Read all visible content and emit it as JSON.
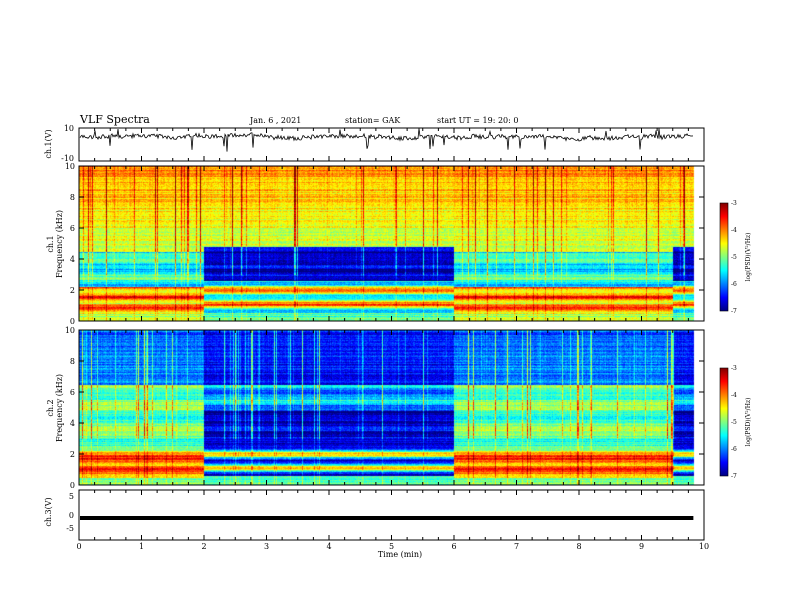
{
  "header": {
    "title": "VLF Spectra",
    "date": "Jan. 6 , 2021",
    "station": "station= GAK",
    "start": "start UT =  19: 20: 0"
  },
  "chart_data": [
    {
      "type": "line",
      "name": "ch1-waveform",
      "ylabel": "ch.1(V)",
      "ylim": [
        -10,
        10
      ],
      "yticks": [
        "10",
        "-10"
      ],
      "xlim": [
        0,
        10
      ],
      "x_extent": [
        0,
        9.83
      ],
      "baseline": 4.5
    },
    {
      "type": "heatmap",
      "name": "ch1-spectrogram",
      "ylabel": "ch.1",
      "ylabel2": "Frequency (kHz)",
      "ylim": [
        0,
        10
      ],
      "yticks": [
        "0",
        "2",
        "4",
        "6",
        "8",
        "10"
      ],
      "xlim": [
        0,
        10
      ],
      "x_extent": [
        0,
        9.83
      ],
      "segments": [
        {
          "x": [
            0,
            2.0
          ],
          "quiet": false
        },
        {
          "x": [
            2.0,
            6.0
          ],
          "quiet": true
        },
        {
          "x": [
            6.0,
            9.5
          ],
          "quiet": false
        },
        {
          "x": [
            9.5,
            9.83
          ],
          "quiet": true
        }
      ],
      "colorbar": {
        "label": "log(PSD)(V²/Hz)",
        "range": [
          -7,
          -3
        ],
        "ticks": [
          "-3",
          "-4",
          "-5",
          "-6",
          "-7"
        ]
      }
    },
    {
      "type": "heatmap",
      "name": "ch2-spectrogram",
      "ylabel": "ch.2",
      "ylabel2": "Frequency (kHz)",
      "ylim": [
        0,
        10
      ],
      "yticks": [
        "0",
        "2",
        "4",
        "6",
        "8",
        "10"
      ],
      "xlim": [
        0,
        10
      ],
      "x_extent": [
        0,
        9.83
      ],
      "segments": [
        {
          "x": [
            0,
            2.0
          ],
          "quiet": false
        },
        {
          "x": [
            2.0,
            6.0
          ],
          "quiet": true
        },
        {
          "x": [
            6.0,
            9.5
          ],
          "quiet": false
        },
        {
          "x": [
            9.5,
            9.83
          ],
          "quiet": true
        }
      ],
      "colorbar": {
        "label": "log(PSD)(V²/Hz)",
        "range": [
          -7,
          -3
        ],
        "ticks": [
          "-3",
          "-4",
          "-5",
          "-6",
          "-7"
        ]
      }
    },
    {
      "type": "line",
      "name": "ch3-waveform",
      "ylabel": "ch.3(V)",
      "ylim": [
        -5,
        5
      ],
      "yticks": [
        "5",
        "0",
        "-5"
      ],
      "xlim": [
        0,
        10
      ],
      "x_extent": [
        0,
        9.83
      ],
      "value": -0.6,
      "xlabel": "Time (min)",
      "xticks": [
        "0",
        "1",
        "2",
        "3",
        "4",
        "5",
        "6",
        "7",
        "8",
        "9",
        "10"
      ]
    }
  ],
  "colors": {
    "jet": [
      "#000080",
      "#0000ff",
      "#0080ff",
      "#00ffff",
      "#80ff80",
      "#ffff00",
      "#ff8000",
      "#ff0000",
      "#800000"
    ]
  }
}
